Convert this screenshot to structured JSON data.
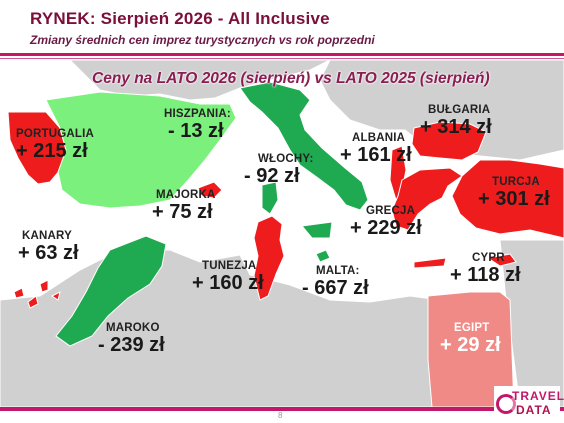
{
  "header": {
    "title": "RYNEK: Sierpień 2026 - All Inclusive",
    "subtitle": "Zmiany średnich cen imprez turystycznych vs rok poprzedni"
  },
  "map": {
    "heading": "Ceny na LATO 2026 (sierpień) vs  LATO 2025 (sierpień)",
    "colors": {
      "sea": "#ffffff",
      "land": "#d0d0d0",
      "increase": "#ee1c1c",
      "increase_light": "#f08a86",
      "decrease": "#1faa52",
      "decrease_light": "#7cf07c"
    },
    "countries": [
      {
        "name": "PORTUGALIA",
        "value": "+ 215 zł"
      },
      {
        "name": "HISZPANIA:",
        "value": "- 13 zł"
      },
      {
        "name": "WŁOCHY:",
        "value": "- 92 zł"
      },
      {
        "name": "ALBANIA",
        "value": "+ 161 zł"
      },
      {
        "name": "BUŁGARIA",
        "value": "+ 314 zł"
      },
      {
        "name": "TURCJA",
        "value": "+ 301 zł"
      },
      {
        "name": "MAJORKA",
        "value": "+ 75 zł"
      },
      {
        "name": "GRECJA",
        "value": "+ 229 zł"
      },
      {
        "name": "KANARY",
        "value": "+ 63 zł"
      },
      {
        "name": "TUNEZJA",
        "value": "+ 160 zł"
      },
      {
        "name": "MALTA:",
        "value": "- 667 zł"
      },
      {
        "name": "CYPR",
        "value": "+ 118 zł"
      },
      {
        "name": "MAROKO",
        "value": "- 239 zł"
      },
      {
        "name": "EGIPT",
        "value": "+ 29 zł"
      }
    ]
  },
  "footer": {
    "page_number": "8",
    "logo_line1": "TRAVEL",
    "logo_line2": "DATA"
  }
}
